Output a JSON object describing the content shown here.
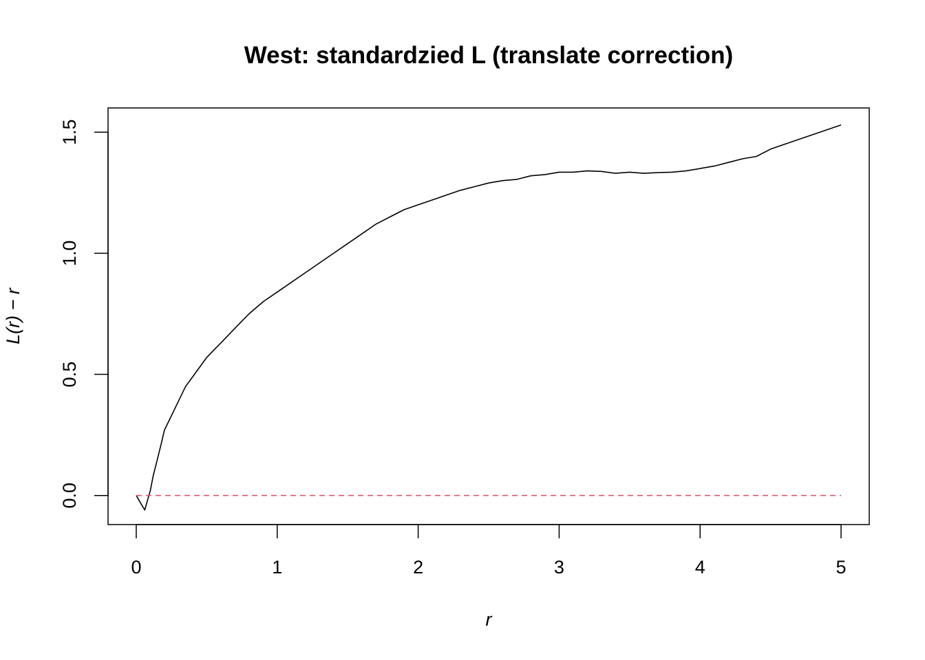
{
  "chart_data": {
    "type": "line",
    "title": "West: standardzied L (translate correction)",
    "xlabel": "r",
    "ylabel": "L(r) − r",
    "xlim": [
      -0.2,
      5.2
    ],
    "ylim": [
      -0.12,
      1.6
    ],
    "x_ticks": [
      0,
      1,
      2,
      3,
      4,
      5
    ],
    "x_tick_labels": [
      "0",
      "1",
      "2",
      "3",
      "4",
      "5"
    ],
    "y_ticks": [
      0.0,
      0.5,
      1.0,
      1.5
    ],
    "y_tick_labels": [
      "0.0",
      "0.5",
      "1.0",
      "1.5"
    ],
    "grid": false,
    "legend": "none",
    "series": [
      {
        "role": "observed",
        "color": "#000000",
        "line_style": "solid",
        "x": [
          0,
          0.03,
          0.06,
          0.08,
          0.1,
          0.12,
          0.15,
          0.18,
          0.2,
          0.25,
          0.3,
          0.35,
          0.4,
          0.5,
          0.55,
          0.6,
          0.7,
          0.8,
          0.9,
          1.0,
          1.1,
          1.2,
          1.3,
          1.4,
          1.5,
          1.6,
          1.7,
          1.8,
          1.9,
          2.0,
          2.1,
          2.2,
          2.3,
          2.4,
          2.5,
          2.6,
          2.7,
          2.8,
          2.9,
          3.0,
          3.1,
          3.2,
          3.3,
          3.4,
          3.5,
          3.6,
          3.7,
          3.8,
          3.9,
          4.0,
          4.1,
          4.2,
          4.3,
          4.4,
          4.5,
          4.6,
          4.7,
          4.8,
          4.9,
          5.0
        ],
        "y": [
          0,
          -0.03,
          -0.06,
          -0.02,
          0.02,
          0.08,
          0.15,
          0.22,
          0.27,
          0.33,
          0.39,
          0.45,
          0.49,
          0.57,
          0.6,
          0.63,
          0.69,
          0.75,
          0.8,
          0.84,
          0.88,
          0.92,
          0.96,
          1.0,
          1.04,
          1.08,
          1.12,
          1.15,
          1.18,
          1.2,
          1.22,
          1.24,
          1.26,
          1.275,
          1.29,
          1.3,
          1.305,
          1.32,
          1.325,
          1.335,
          1.335,
          1.34,
          1.338,
          1.33,
          1.335,
          1.33,
          1.333,
          1.335,
          1.34,
          1.35,
          1.36,
          1.375,
          1.39,
          1.4,
          1.43,
          1.45,
          1.47,
          1.49,
          1.51,
          1.53
        ]
      },
      {
        "role": "theoretical",
        "color": "#DF536B",
        "line_style": "dashed",
        "x": [
          0,
          5
        ],
        "y": [
          0,
          0
        ]
      }
    ]
  }
}
